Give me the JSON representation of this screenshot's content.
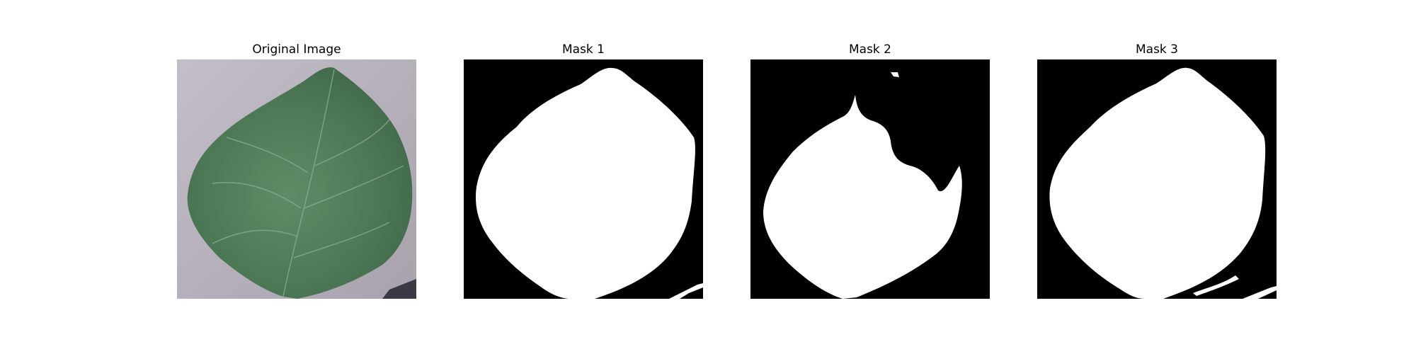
{
  "panels": [
    {
      "title": "Original Image",
      "content": "leaf-photo"
    },
    {
      "title": "Mask 1",
      "content": "segmentation-mask"
    },
    {
      "title": "Mask 2",
      "content": "segmentation-mask"
    },
    {
      "title": "Mask 3",
      "content": "segmentation-mask"
    }
  ],
  "colors": {
    "background": "#ffffff",
    "mask_background": "#000000",
    "mask_foreground": "#ffffff",
    "leaf": "#4f7a57",
    "surface": "#b9b3bd"
  }
}
